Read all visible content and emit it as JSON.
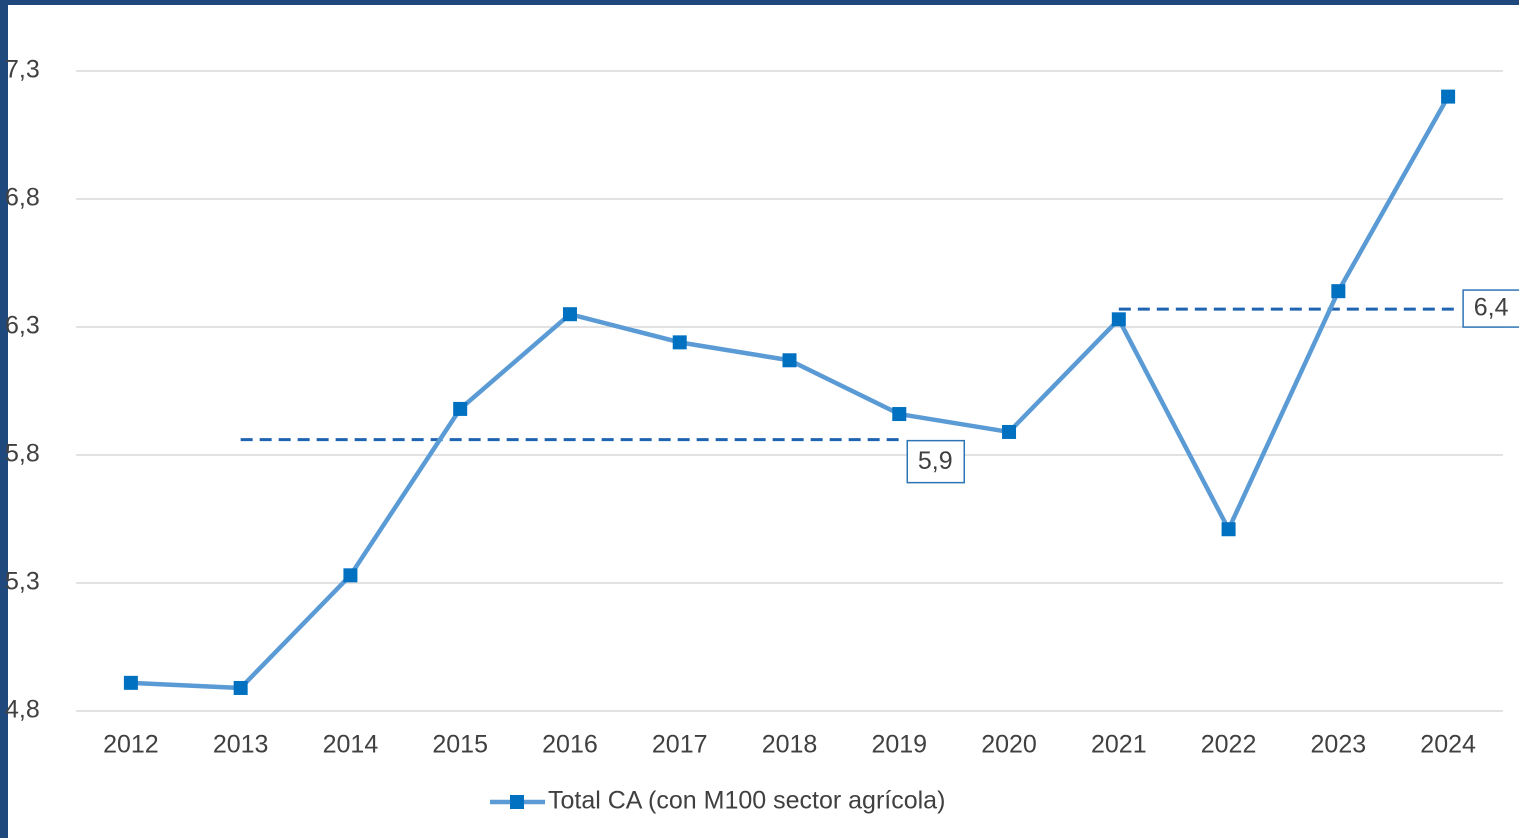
{
  "chart_data": {
    "type": "line",
    "categories": [
      "2012",
      "2013",
      "2014",
      "2015",
      "2016",
      "2017",
      "2018",
      "2019",
      "2020",
      "2021",
      "2022",
      "2023",
      "2024"
    ],
    "series": [
      {
        "name": "Total CA (con M100 sector agrícola)",
        "color": "#5b9bd5",
        "marker_color": "#0070c0",
        "values": [
          4.91,
          4.89,
          5.33,
          5.98,
          6.35,
          6.24,
          6.17,
          5.96,
          5.89,
          6.33,
          5.51,
          6.44,
          7.2
        ]
      }
    ],
    "ylim": [
      4.8,
      7.3
    ],
    "yticks": [
      {
        "value": 4.8,
        "label": "4,8"
      },
      {
        "value": 5.3,
        "label": "5,3"
      },
      {
        "value": 5.8,
        "label": "5,8"
      },
      {
        "value": 6.3,
        "label": "6,3"
      },
      {
        "value": 6.8,
        "label": "6,8"
      },
      {
        "value": 7.3,
        "label": "7,3"
      }
    ],
    "grid": true,
    "legend": "bottom",
    "averages": [
      {
        "from": "2013",
        "to": "2019",
        "value": 5.86,
        "label": "5,9",
        "color": "#1f64b0"
      },
      {
        "from": "2021",
        "to": "2024",
        "value": 6.37,
        "label": "6,4",
        "color": "#1f64b0"
      }
    ]
  }
}
